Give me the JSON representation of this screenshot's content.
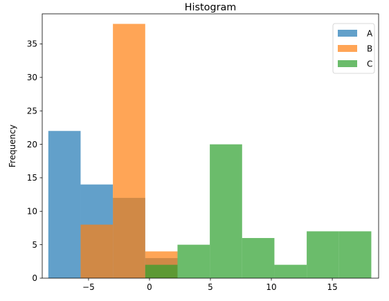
{
  "chart_data": {
    "type": "bar",
    "title": "Histogram",
    "xlabel": "",
    "ylabel": "Frequency",
    "xlim": [
      -8.8,
      18.8
    ],
    "ylim": [
      0,
      39.5
    ],
    "xticks": [
      -5,
      0,
      5,
      10,
      15
    ],
    "yticks": [
      0,
      5,
      10,
      15,
      20,
      25,
      30,
      35
    ],
    "bin_edges": [
      -8.3,
      -5.65,
      -3.0,
      -0.35,
      2.3,
      4.95,
      7.6,
      10.25,
      12.9,
      15.55,
      18.2
    ],
    "opacity": 0.7,
    "legend_position": "top-right",
    "grid": false,
    "series": [
      {
        "name": "A",
        "color": "#1f77b4",
        "values": [
          22,
          14,
          12,
          3,
          0,
          0,
          0,
          0,
          0,
          0
        ]
      },
      {
        "name": "B",
        "color": "#ff7f0e",
        "values": [
          0,
          8,
          38,
          4,
          0,
          0,
          0,
          0,
          0,
          0
        ]
      },
      {
        "name": "C",
        "color": "#2ca02c",
        "values": [
          0,
          0,
          0,
          2,
          5,
          20,
          6,
          2,
          7,
          7
        ]
      }
    ]
  }
}
